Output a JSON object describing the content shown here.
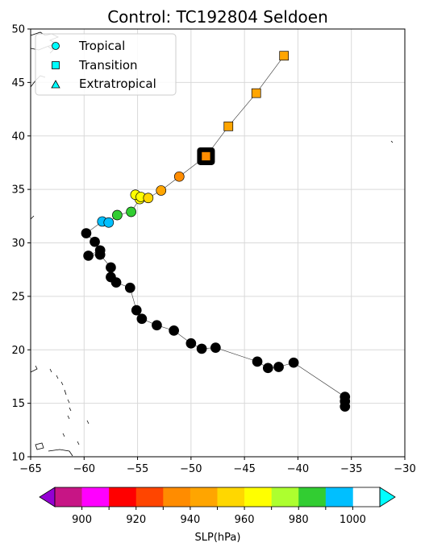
{
  "chart_data": {
    "type": "scatter",
    "title": "Control: TC192804 Seldoen",
    "xlim": [
      -65,
      -30
    ],
    "ylim": [
      10,
      50
    ],
    "xticks": [
      -65,
      -60,
      -55,
      -50,
      -45,
      -40,
      -35,
      -30
    ],
    "yticks": [
      10,
      15,
      20,
      25,
      30,
      35,
      40,
      45,
      50
    ],
    "grid": true,
    "legend": {
      "placement": "top-left",
      "entries": [
        {
          "label": "Tropical",
          "marker": "circle"
        },
        {
          "label": "Transition",
          "marker": "square"
        },
        {
          "label": "Extratropical",
          "marker": "triangle"
        }
      ]
    },
    "colorbar": {
      "label": "SLP(hPa)",
      "boundaries": [
        890,
        900,
        910,
        920,
        930,
        940,
        950,
        960,
        970,
        980,
        990,
        1000,
        1010
      ],
      "colors": [
        "#c71585",
        "#ff00ff",
        "#ff0000",
        "#ff4500",
        "#ff8c00",
        "#ffa500",
        "#ffd700",
        "#ffff00",
        "#adff2f",
        "#32cd32",
        "#00bfff"
      ],
      "under_color": "#9400d3",
      "over_color": "#00ffff",
      "ticks": [
        900,
        920,
        940,
        960,
        980,
        1000
      ]
    },
    "highlight": {
      "lon": -48.6,
      "lat": 38.1
    },
    "track": [
      {
        "lon": -35.6,
        "lat": 14.7,
        "slp": 1004,
        "phase": "Tropical"
      },
      {
        "lon": -35.6,
        "lat": 15.2,
        "slp": 1004,
        "phase": "Tropical"
      },
      {
        "lon": -35.6,
        "lat": 15.6,
        "slp": 1004,
        "phase": "Tropical"
      },
      {
        "lon": -40.4,
        "lat": 18.8,
        "slp": 1004,
        "phase": "Tropical"
      },
      {
        "lon": -41.8,
        "lat": 18.4,
        "slp": 1004,
        "phase": "Tropical"
      },
      {
        "lon": -42.8,
        "lat": 18.3,
        "slp": 1004,
        "phase": "Tropical"
      },
      {
        "lon": -43.8,
        "lat": 18.9,
        "slp": 1004,
        "phase": "Tropical"
      },
      {
        "lon": -47.7,
        "lat": 20.2,
        "slp": 1004,
        "phase": "Tropical"
      },
      {
        "lon": -49.0,
        "lat": 20.1,
        "slp": 1004,
        "phase": "Tropical"
      },
      {
        "lon": -50.0,
        "lat": 20.6,
        "slp": 1004,
        "phase": "Tropical"
      },
      {
        "lon": -51.6,
        "lat": 21.8,
        "slp": 1004,
        "phase": "Tropical"
      },
      {
        "lon": -53.2,
        "lat": 22.3,
        "slp": 1004,
        "phase": "Tropical"
      },
      {
        "lon": -54.6,
        "lat": 22.9,
        "slp": 1004,
        "phase": "Tropical"
      },
      {
        "lon": -55.1,
        "lat": 23.7,
        "slp": 1004,
        "phase": "Tropical"
      },
      {
        "lon": -55.7,
        "lat": 25.8,
        "slp": 1004,
        "phase": "Tropical"
      },
      {
        "lon": -57.0,
        "lat": 26.3,
        "slp": 1004,
        "phase": "Tropical"
      },
      {
        "lon": -57.5,
        "lat": 26.8,
        "slp": 1004,
        "phase": "Tropical"
      },
      {
        "lon": -57.5,
        "lat": 27.7,
        "slp": 1004,
        "phase": "Tropical"
      },
      {
        "lon": -58.5,
        "lat": 28.9,
        "slp": 1004,
        "phase": "Tropical"
      },
      {
        "lon": -59.6,
        "lat": 28.8,
        "slp": 1004,
        "phase": "Tropical"
      },
      {
        "lon": -58.5,
        "lat": 29.3,
        "slp": 1004,
        "phase": "Tropical"
      },
      {
        "lon": -59.0,
        "lat": 30.1,
        "slp": 1004,
        "phase": "Tropical"
      },
      {
        "lon": -59.8,
        "lat": 30.9,
        "slp": 1004,
        "phase": "Tropical"
      },
      {
        "lon": -58.3,
        "lat": 32.0,
        "slp": 995,
        "phase": "Tropical"
      },
      {
        "lon": -57.7,
        "lat": 31.9,
        "slp": 995,
        "phase": "Tropical"
      },
      {
        "lon": -56.9,
        "lat": 32.6,
        "slp": 985,
        "phase": "Tropical"
      },
      {
        "lon": -55.6,
        "lat": 32.9,
        "slp": 985,
        "phase": "Tropical"
      },
      {
        "lon": -54.8,
        "lat": 34.1,
        "slp": 965,
        "phase": "Tropical"
      },
      {
        "lon": -55.2,
        "lat": 34.5,
        "slp": 965,
        "phase": "Tropical"
      },
      {
        "lon": -54.7,
        "lat": 34.3,
        "slp": 965,
        "phase": "Tropical"
      },
      {
        "lon": -54.0,
        "lat": 34.2,
        "slp": 955,
        "phase": "Tropical"
      },
      {
        "lon": -52.8,
        "lat": 34.9,
        "slp": 945,
        "phase": "Tropical"
      },
      {
        "lon": -51.1,
        "lat": 36.2,
        "slp": 935,
        "phase": "Tropical"
      },
      {
        "lon": -48.6,
        "lat": 38.1,
        "slp": 935,
        "phase": "Transition"
      },
      {
        "lon": -46.5,
        "lat": 40.9,
        "slp": 945,
        "phase": "Transition"
      },
      {
        "lon": -43.9,
        "lat": 44.0,
        "slp": 945,
        "phase": "Transition"
      },
      {
        "lon": -41.3,
        "lat": 47.5,
        "slp": 945,
        "phase": "Transition"
      }
    ]
  }
}
